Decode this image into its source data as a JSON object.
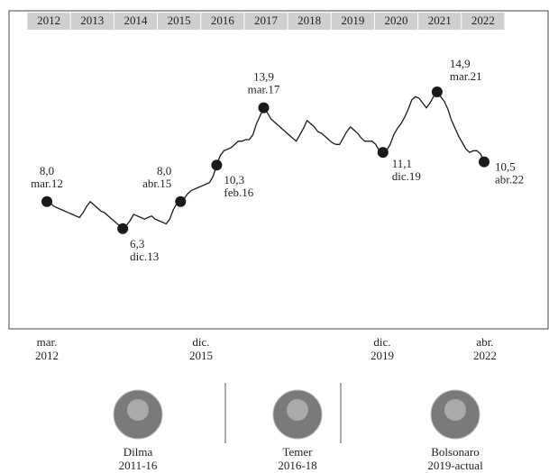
{
  "chart_data": {
    "type": "line",
    "years": [
      "2012",
      "2013",
      "2014",
      "2015",
      "2016",
      "2017",
      "2018",
      "2019",
      "2020",
      "2021",
      "2022"
    ],
    "categories": [
      "mar.12",
      null,
      null,
      null,
      null,
      null,
      null,
      null,
      null,
      null,
      null,
      null,
      null,
      null,
      null,
      null,
      null,
      null,
      null,
      null,
      null,
      "dic.13",
      null,
      null,
      null,
      null,
      null,
      null,
      null,
      null,
      null,
      null,
      null,
      null,
      null,
      null,
      null,
      "abr.15",
      null,
      null,
      null,
      null,
      null,
      null,
      null,
      null,
      null,
      "feb.16",
      null,
      null,
      null,
      null,
      null,
      null,
      null,
      null,
      null,
      null,
      null,
      null,
      "mar.17",
      null,
      null,
      null,
      null,
      null,
      null,
      null,
      null,
      null,
      null,
      null,
      null,
      null,
      null,
      null,
      null,
      null,
      null,
      null,
      null,
      null,
      null,
      null,
      null,
      null,
      null,
      null,
      null,
      null,
      null,
      null,
      null,
      "dic.19",
      null,
      null,
      null,
      null,
      null,
      null,
      null,
      null,
      null,
      null,
      null,
      null,
      null,
      null,
      "mar.21",
      null,
      null,
      null,
      null,
      null,
      null,
      null,
      null,
      null,
      null,
      null,
      null,
      "abr.22"
    ],
    "values": [
      8.0,
      7.9,
      7.7,
      7.6,
      7.5,
      7.4,
      7.3,
      7.2,
      7.1,
      7.0,
      7.3,
      7.7,
      8.0,
      7.8,
      7.6,
      7.4,
      7.3,
      7.1,
      6.9,
      6.7,
      6.5,
      6.3,
      6.5,
      6.8,
      7.2,
      7.1,
      7.0,
      6.9,
      7.0,
      7.1,
      6.9,
      6.8,
      6.7,
      6.6,
      6.9,
      7.5,
      7.9,
      8.0,
      8.2,
      8.5,
      8.7,
      8.8,
      8.9,
      9.0,
      9.1,
      9.2,
      9.6,
      10.3,
      10.9,
      11.2,
      11.3,
      11.4,
      11.6,
      11.8,
      11.8,
      11.9,
      11.9,
      12.2,
      12.9,
      13.4,
      13.9,
      13.6,
      13.2,
      13.0,
      12.8,
      12.6,
      12.4,
      12.2,
      12.0,
      11.8,
      12.2,
      12.6,
      13.1,
      12.9,
      12.7,
      12.4,
      12.3,
      12.1,
      11.9,
      11.7,
      11.6,
      11.6,
      12.0,
      12.4,
      12.7,
      12.5,
      12.3,
      12.0,
      11.8,
      11.8,
      11.8,
      11.6,
      11.2,
      11.1,
      11.2,
      11.6,
      12.2,
      12.6,
      12.9,
      13.3,
      13.8,
      14.4,
      14.6,
      14.5,
      14.2,
      13.9,
      14.2,
      14.6,
      14.9,
      14.6,
      14.3,
      13.8,
      13.1,
      12.6,
      12.1,
      11.7,
      11.3,
      11.1,
      11.2,
      11.2,
      11.0,
      10.5
    ],
    "value_labels": [
      "8,0",
      null,
      null,
      null,
      null,
      null,
      null,
      null,
      null,
      null,
      null,
      null,
      null,
      null,
      null,
      null,
      null,
      null,
      null,
      null,
      null,
      "6,3",
      null,
      null,
      null,
      null,
      null,
      null,
      null,
      null,
      null,
      null,
      null,
      null,
      null,
      null,
      null,
      "8,0",
      null,
      null,
      null,
      null,
      null,
      null,
      null,
      null,
      null,
      "10,3",
      null,
      null,
      null,
      null,
      null,
      null,
      null,
      null,
      null,
      null,
      null,
      null,
      "13,9",
      null,
      null,
      null,
      null,
      null,
      null,
      null,
      null,
      null,
      null,
      null,
      null,
      null,
      null,
      null,
      null,
      null,
      null,
      null,
      null,
      null,
      null,
      null,
      null,
      null,
      null,
      null,
      null,
      null,
      null,
      null,
      null,
      "11,1",
      null,
      null,
      null,
      null,
      null,
      null,
      null,
      null,
      null,
      null,
      null,
      null,
      null,
      null,
      "14,9",
      null,
      null,
      null,
      null,
      null,
      null,
      null,
      null,
      null,
      null,
      null,
      null,
      "10,5"
    ],
    "color": "#1a1a1a",
    "ylim": [
      0,
      20
    ],
    "x_axis_labels": [
      [
        "mar.",
        "2012"
      ],
      [
        "dic.",
        "2015"
      ],
      [
        "dic.",
        "2019"
      ],
      [
        "abr.",
        "2022"
      ]
    ],
    "presidents": [
      {
        "name": "Dilma",
        "term": "2011-16"
      },
      {
        "name": "Temer",
        "term": "2016-18"
      },
      {
        "name": "Bolsonaro",
        "term": "2019-actual"
      }
    ]
  }
}
